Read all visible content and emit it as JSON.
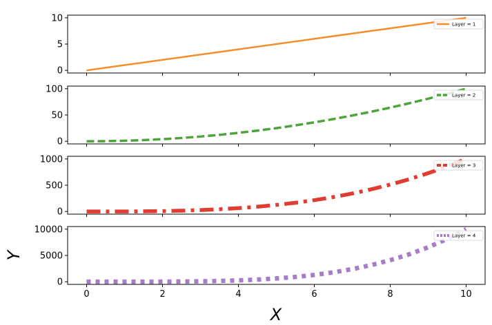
{
  "chart_data": {
    "type": "line",
    "xlabel": "X",
    "ylabel": "Y",
    "xlim": [
      -0.5,
      10.5
    ],
    "xticks": [
      0,
      2,
      4,
      6,
      8,
      10
    ],
    "x": [
      0,
      0.5,
      1,
      1.5,
      2,
      2.5,
      3,
      3.5,
      4,
      4.5,
      5,
      5.5,
      6,
      6.5,
      7,
      7.5,
      8,
      8.5,
      9,
      9.5,
      10
    ],
    "grid": false,
    "legend_placement": "top-right",
    "panels": [
      {
        "series_name": "Layer = 1",
        "color": "#f28e2b",
        "linestyle": "solid",
        "ylim": [
          -0.5,
          10.5
        ],
        "yticks": [
          0,
          5,
          10
        ],
        "y": [
          0,
          0.5,
          1,
          1.5,
          2,
          2.5,
          3,
          3.5,
          4,
          4.5,
          5,
          5.5,
          6,
          6.5,
          7,
          7.5,
          8,
          8.5,
          9,
          9.5,
          10
        ]
      },
      {
        "series_name": "Layer = 2",
        "color": "#4ea33a",
        "linestyle": "dashed",
        "ylim": [
          -5,
          105
        ],
        "yticks": [
          0,
          50,
          100
        ],
        "y": [
          0,
          0.25,
          1,
          2.25,
          4,
          6.25,
          9,
          12.25,
          16,
          20.25,
          25,
          30.25,
          36,
          42.25,
          49,
          56.25,
          64,
          72.25,
          81,
          90.25,
          100
        ]
      },
      {
        "series_name": "Layer = 3",
        "color": "#e03c31",
        "linestyle": "dashdot",
        "ylim": [
          -50,
          1050
        ],
        "yticks": [
          0,
          500,
          1000
        ],
        "y": [
          0,
          0.125,
          1,
          3.375,
          8,
          15.625,
          27,
          42.875,
          64,
          91.125,
          125,
          166.375,
          216,
          274.625,
          343,
          421.875,
          512,
          614.125,
          729,
          857.375,
          1000
        ]
      },
      {
        "series_name": "Layer = 4",
        "color": "#a67dc9",
        "linestyle": "dotted",
        "ylim": [
          -500,
          10500
        ],
        "yticks": [
          0,
          5000,
          10000
        ],
        "y": [
          0,
          0.0625,
          1,
          5.0625,
          16,
          39.0625,
          81,
          150.0625,
          256,
          410.0625,
          625,
          915.0625,
          1296,
          1785.0625,
          2401,
          3164.0625,
          4096,
          5220.0625,
          6561,
          8145.0625,
          10000
        ]
      }
    ]
  }
}
